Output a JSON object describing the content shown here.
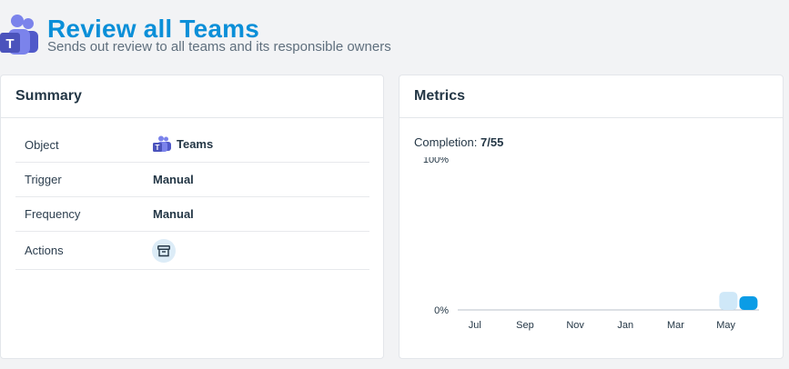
{
  "header": {
    "title": "Review all Teams",
    "subtitle": "Sends out review to all teams and its responsible owners",
    "logo_icon": "microsoft-teams-icon"
  },
  "summary": {
    "heading": "Summary",
    "rows": [
      {
        "label": "Object",
        "value": "Teams",
        "icon": "microsoft-teams-icon"
      },
      {
        "label": "Trigger",
        "value": "Manual"
      },
      {
        "label": "Frequency",
        "value": "Manual"
      },
      {
        "label": "Actions",
        "icon": "archive-icon"
      }
    ]
  },
  "metrics": {
    "heading": "Metrics",
    "completion_label": "Completion:",
    "completion_value": "7/55"
  },
  "colors": {
    "accent": "#0b8fd8",
    "bar_light": "#cfe8f8",
    "bar_dark": "#0b9ce6"
  },
  "chart_data": {
    "type": "bar",
    "categories": [
      "Jul",
      "Sep",
      "Nov",
      "Jan",
      "Mar",
      "May"
    ],
    "ytick_labels": [
      "0%",
      "100%"
    ],
    "ylim": [
      0,
      100
    ],
    "bars": [
      {
        "month_index": 10.6,
        "value": 12,
        "color": "#cfe8f8"
      },
      {
        "month_index": 11.4,
        "value": 9,
        "color": "#0b9ce6"
      }
    ]
  }
}
